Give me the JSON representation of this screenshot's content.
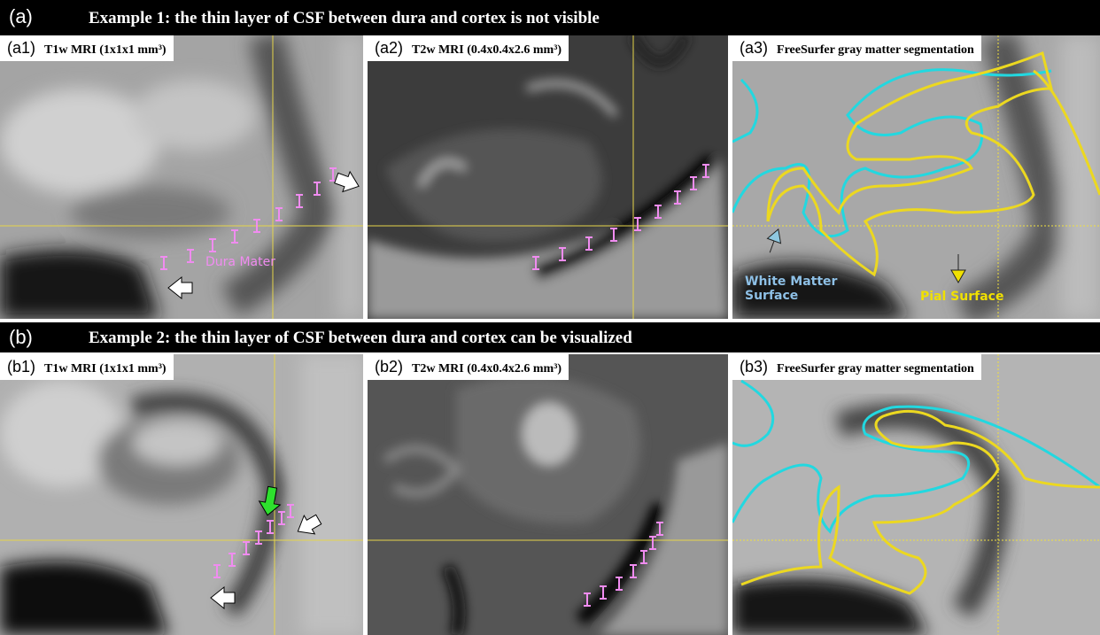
{
  "sections": [
    {
      "label": "(a)",
      "title": "Example 1: the thin layer of CSF between dura and cortex is not visible",
      "panels": [
        {
          "label": "(a1)",
          "title": "T1w MRI (1x1x1 mm³)"
        },
        {
          "label": "(a2)",
          "title": "T2w MRI (0.4x0.4x2.6 mm³)"
        },
        {
          "label": "(a3)",
          "title": "FreeSurfer gray matter segmentation"
        }
      ],
      "annotations": {
        "dura": "Dura Mater",
        "white_matter": "White Matter Surface",
        "pial": "Pial Surface"
      }
    },
    {
      "label": "(b)",
      "title": "Example 2: the thin layer of CSF between dura and cortex can be visualized",
      "panels": [
        {
          "label": "(b1)",
          "title": "T1w MRI (1x1x1 mm³)"
        },
        {
          "label": "(b2)",
          "title": "T2w MRI (0.4x0.4x2.6 mm³)"
        },
        {
          "label": "(b3)",
          "title": "FreeSurfer gray matter segmentation"
        }
      ]
    }
  ]
}
